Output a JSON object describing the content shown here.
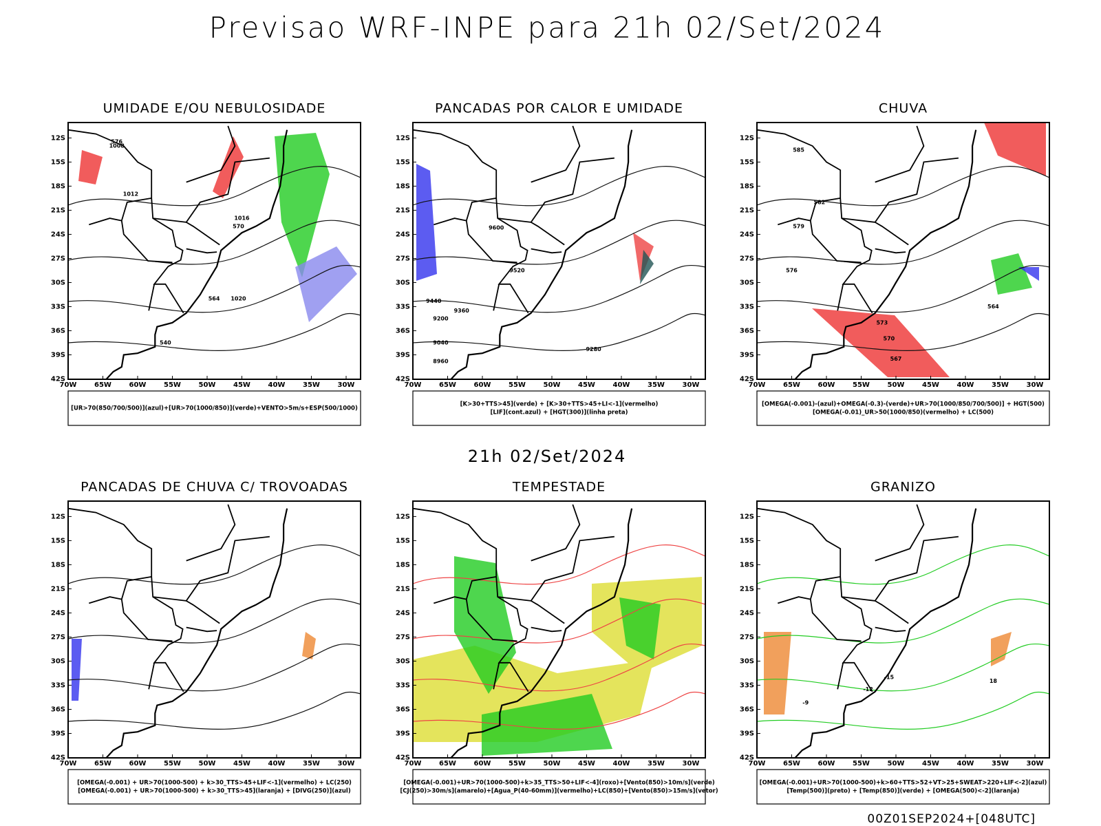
{
  "title": "Previsao WRF-INPE  para 21h 02/Set/2024",
  "subtitle": "21h 02/Set/2024",
  "footer": "00Z01SEP2024+[048UTC]",
  "lat_ticks": [
    "12S",
    "15S",
    "18S",
    "21S",
    "24S",
    "27S",
    "30S",
    "33S",
    "36S",
    "39S",
    "42S"
  ],
  "lon_ticks": [
    "70W",
    "65W",
    "60W",
    "55W",
    "50W",
    "45W",
    "40W",
    "35W",
    "30W"
  ],
  "panels": [
    {
      "title": "UMIDADE E/OU NEBULOSIDADE",
      "legend": [
        "[UR>70(850/700/500)](azul)+[UR>70(1000/850)](verde)+VENTO>5m/s+ESP(500/1000)"
      ],
      "contour_labels": [
        "1008",
        "1012",
        "1016",
        "1020",
        "576",
        "570",
        "564",
        "540"
      ]
    },
    {
      "title": "PANCADAS POR CALOR E UMIDADE",
      "legend": [
        "[K>30+TTS>45](verde) + [K>30+TTS>45+LI<-1](vermelho)",
        "[LIF](cont.azul) + [HGT(300)](linha preta)"
      ],
      "contour_labels": [
        "9600",
        "9520",
        "9440",
        "9360",
        "9280",
        "9200",
        "9040",
        "8960"
      ]
    },
    {
      "title": "CHUVA",
      "legend": [
        "[OMEGA(-0.001)-(azul)+OMEGA(-0.3)-(verde)+UR>70(1000/850/700/500)] + HGT(500)",
        "[OMEGA(-0.01)_UR>50(1000/850)(vermelho) + LC(500)"
      ],
      "contour_labels": [
        "585",
        "582",
        "579",
        "576",
        "573",
        "570",
        "567",
        "564"
      ]
    },
    {
      "title": "PANCADAS DE CHUVA C/ TROVOADAS",
      "legend": [
        "[OMEGA(-0.001) + UR>70(1000-500) + k>30_TTS>45+LIF<-1](vermelho) + LC(250)",
        "[OMEGA(-0.001) + UR>70(1000-500) + k>30_TTS>45](laranja) + [DIVG(250)](azul)"
      ],
      "contour_labels": []
    },
    {
      "title": "TEMPESTADE",
      "legend": [
        "[OMEGA(-0.001)+UR>70(1000-500)+k>35_TTS>50+LIF<-4](roxo)+[Vento(850)>10m/s](verde)",
        "[CJ(250)>30m/s](amarelo)+[Agua_P(40-60mm)](vermelho)+LC(850)+[Vento(850)>15m/s](vetor)"
      ],
      "contour_labels": []
    },
    {
      "title": "GRANIZO",
      "legend": [
        "[OMEGA(-0.001)+UR>70(1000-500)+k>60+TTS>52+VT>25+SWEAT>220+LIF<-2](azul)",
        "[Temp(500)](preto) + [Temp(850)](verde) + [OMEGA(500)<-2](laranja)"
      ],
      "contour_labels": [
        "-15",
        "-12",
        "-9",
        "18"
      ]
    }
  ]
}
